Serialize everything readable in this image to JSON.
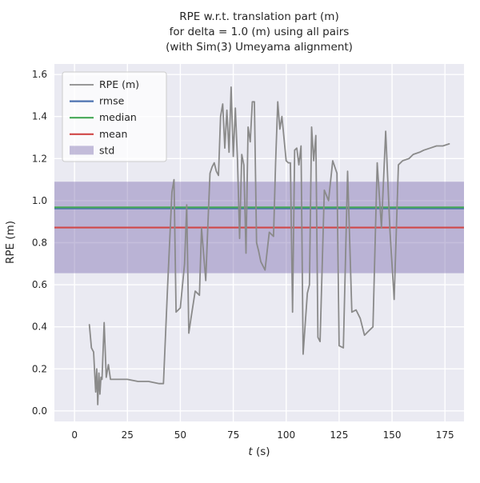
{
  "title": {
    "line1": "RPE w.r.t. translation part (m)",
    "line2": "for delta = 1.0 (m) using all pairs",
    "line3": "(with Sim(3) Umeyama alignment)"
  },
  "chart_data": {
    "type": "line",
    "title": "RPE w.r.t. translation part (m)\nfor delta = 1.0 (m) using all pairs\n(with Sim(3) Umeyama alignment)",
    "xlabel": "t (s)",
    "xlabel_parts": {
      "italic": "t",
      "rest": " (s)"
    },
    "ylabel": "RPE (m)",
    "xlim": [
      -9.5,
      184
    ],
    "ylim": [
      -0.05,
      1.65
    ],
    "xticks": [
      0,
      25,
      50,
      75,
      100,
      125,
      150,
      175
    ],
    "xticklabels": [
      "0",
      "25",
      "50",
      "75",
      "100",
      "125",
      "150",
      "175"
    ],
    "yticks": [
      0.0,
      0.2,
      0.4,
      0.6,
      0.8,
      1.0,
      1.2,
      1.4,
      1.6
    ],
    "yticklabels": [
      "0.0",
      "0.2",
      "0.4",
      "0.6",
      "0.8",
      "1.0",
      "1.2",
      "1.4",
      "1.6"
    ],
    "grid": true,
    "legend_position": "upper left",
    "colors": {
      "plot_bg": "#eaeaf2",
      "grid": "#ffffff",
      "text": "#262626"
    },
    "series": [
      {
        "name": "RPE (m)",
        "type": "line",
        "color": "#8a8a8a",
        "x": [
          7,
          8,
          9,
          10,
          10.5,
          11,
          11.5,
          12,
          12.5,
          13,
          14,
          15,
          16,
          17,
          20,
          25,
          30,
          35,
          40,
          42,
          44,
          46,
          47,
          48,
          50,
          52,
          53,
          54,
          55,
          57,
          59,
          60,
          62,
          63,
          64,
          65,
          66,
          67,
          68,
          69,
          70,
          71,
          72,
          73,
          74,
          75,
          76,
          77,
          78,
          79,
          80,
          81,
          82,
          83,
          84,
          85,
          86,
          87,
          88,
          90,
          92,
          94,
          95,
          96,
          97,
          98,
          100,
          101,
          102,
          103,
          104,
          105,
          106,
          107,
          108,
          110,
          111,
          112,
          113,
          114,
          115,
          116,
          118,
          120,
          122,
          124,
          125,
          127,
          129,
          131,
          133,
          135,
          137,
          139,
          141,
          143,
          145,
          147,
          149,
          151,
          153,
          155,
          158,
          160,
          163,
          165,
          168,
          171,
          174,
          177
        ],
        "y": [
          0.41,
          0.3,
          0.28,
          0.09,
          0.2,
          0.03,
          0.18,
          0.08,
          0.16,
          0.15,
          0.42,
          0.16,
          0.22,
          0.15,
          0.15,
          0.15,
          0.14,
          0.14,
          0.13,
          0.13,
          0.6,
          1.04,
          1.1,
          0.47,
          0.49,
          0.7,
          0.98,
          0.37,
          0.44,
          0.57,
          0.55,
          0.87,
          0.62,
          0.88,
          1.13,
          1.16,
          1.18,
          1.14,
          1.12,
          1.4,
          1.46,
          1.25,
          1.43,
          1.23,
          1.54,
          1.21,
          1.44,
          1.19,
          0.82,
          1.22,
          1.17,
          0.75,
          1.35,
          1.28,
          1.47,
          1.47,
          0.8,
          0.76,
          0.71,
          0.67,
          0.85,
          0.83,
          1.18,
          1.47,
          1.34,
          1.4,
          1.19,
          1.18,
          1.18,
          0.47,
          1.24,
          1.25,
          1.17,
          1.26,
          0.27,
          0.56,
          0.6,
          1.35,
          1.19,
          1.31,
          0.35,
          0.33,
          1.05,
          1.0,
          1.19,
          1.13,
          0.31,
          0.3,
          1.14,
          0.47,
          0.48,
          0.44,
          0.36,
          0.38,
          0.4,
          1.18,
          0.87,
          1.33,
          0.86,
          0.53,
          1.17,
          1.19,
          1.2,
          1.22,
          1.23,
          1.24,
          1.25,
          1.26,
          1.26,
          1.27
        ]
      },
      {
        "name": "rmse",
        "type": "hline",
        "color": "#4c72b0",
        "value": 0.963
      },
      {
        "name": "median",
        "type": "hline",
        "color": "#44a756",
        "value": 0.968
      },
      {
        "name": "mean",
        "type": "hline",
        "color": "#d04747",
        "value": 0.872
      },
      {
        "name": "std",
        "type": "hband",
        "color": "#8172b2",
        "lo": 0.655,
        "hi": 1.09
      }
    ]
  }
}
